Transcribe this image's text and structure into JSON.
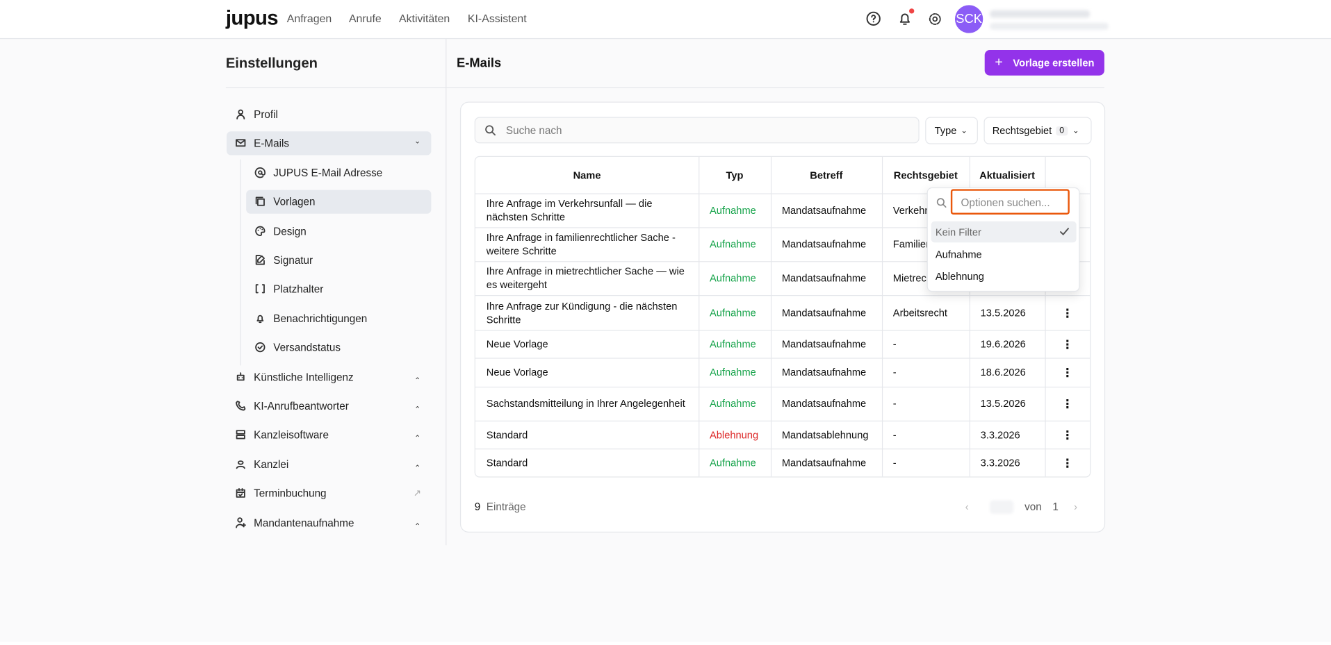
{
  "header": {
    "logo": "jupus",
    "nav": [
      "Anfragen",
      "Anrufe",
      "Aktivitäten",
      "KI-Assistent"
    ],
    "avatar": "SCK"
  },
  "sidebar": {
    "title": "Einstellungen",
    "items": [
      {
        "label": "Profil"
      },
      {
        "label": "E-Mails",
        "children": [
          "JUPUS E-Mail Adresse",
          "Vorlagen",
          "Design",
          "Signatur",
          "Platzhalter",
          "Benachrichtigungen",
          "Versandstatus"
        ]
      },
      {
        "label": "Künstliche Intelligenz"
      },
      {
        "label": "KI-Anrufbeantworter"
      },
      {
        "label": "Kanzleisoftware"
      },
      {
        "label": "Kanzlei"
      },
      {
        "label": "Terminbuchung"
      },
      {
        "label": "Mandantenaufnahme"
      }
    ]
  },
  "main": {
    "title": "E-Mails",
    "button": "Vorlage erstellen",
    "search_placeholder": "Suche nach",
    "filters": {
      "type": "Type",
      "rechtsgebiet": "Rechtsgebiet",
      "rechtsgebiet_count": "0"
    },
    "table": {
      "columns": [
        "Name",
        "Typ",
        "Betreff",
        "Rechtsgebiet",
        "Aktualisiert"
      ],
      "rows": [
        {
          "name": "Ihre Anfrage im Verkehrsunfall — die nächsten Schritte",
          "typ": "Aufnahme",
          "typ_color": "#16a34a",
          "betreff": "Mandatsaufnahme",
          "rechtsgebiet": "Verkehrsrecht"
        },
        {
          "name": "Ihre Anfrage in familienrechtlicher Sache - weitere Schritte",
          "typ": "Aufnahme",
          "typ_color": "#16a34a",
          "betreff": "Mandatsaufnahme",
          "rechtsgebiet": "Familienrecht"
        },
        {
          "name": "Ihre Anfrage in mietrechtlicher Sache — wie es weitergeht",
          "typ": "Aufnahme",
          "typ_color": "#16a34a",
          "betreff": "Mandatsaufnahme",
          "rechtsgebiet": "Mietrecht"
        },
        {
          "name": "Ihre Anfrage zur Kündigung - die nächsten Schritte",
          "typ": "Aufnahme",
          "typ_color": "#16a34a",
          "betreff": "Mandatsaufnahme",
          "rechtsgebiet": "Arbeitsrecht",
          "aktualisiert": "13.5.2026"
        },
        {
          "name": "Neue Vorlage",
          "typ": "Aufnahme",
          "typ_color": "#16a34a",
          "betreff": "Mandatsaufnahme",
          "rechtsgebiet": "-",
          "aktualisiert": "19.6.2026"
        },
        {
          "name": "Neue Vorlage",
          "typ": "Aufnahme",
          "typ_color": "#16a34a",
          "betreff": "Mandatsaufnahme",
          "rechtsgebiet": "-",
          "aktualisiert": "18.6.2026"
        },
        {
          "name": "Sachstandsmitteilung in Ihrer Angelegenheit",
          "typ": "Aufnahme",
          "typ_color": "#16a34a",
          "betreff": "Mandatsaufnahme",
          "rechtsgebiet": "-",
          "aktualisiert": "13.5.2026"
        },
        {
          "name": "Standard",
          "typ": "Ablehnung",
          "typ_color": "#dc2626",
          "betreff": "Mandatsablehnung",
          "rechtsgebiet": "-",
          "aktualisiert": "3.3.2026"
        },
        {
          "name": "Standard",
          "typ": "Aufnahme",
          "typ_color": "#16a34a",
          "betreff": "Mandatsaufnahme",
          "rechtsgebiet": "-",
          "aktualisiert": "3.3.2026"
        }
      ]
    },
    "footer": {
      "count": "9",
      "count_label": "Einträge",
      "of": "von",
      "pages": "1"
    },
    "dropdown": {
      "placeholder": "Optionen suchen...",
      "options": [
        "Kein Filter",
        "Aufnahme",
        "Ablehnung"
      ]
    }
  }
}
